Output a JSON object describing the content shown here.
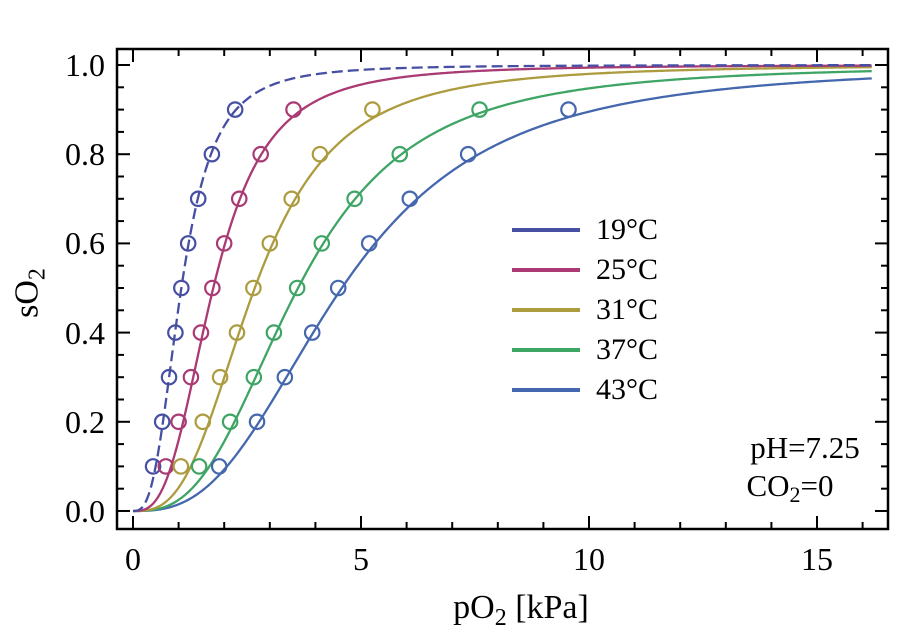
{
  "figure": {
    "background": "#ffffff",
    "frame_color": "#000000",
    "text_color": "#000000"
  },
  "chart_data": {
    "type": "line",
    "title": "",
    "xlabel": {
      "pre": "pO",
      "sub": "2",
      "post": " [kPa]"
    },
    "ylabel": {
      "pre": "sO",
      "sub": "2",
      "post": ""
    },
    "xlim": [
      -0.351,
      16.557
    ],
    "ylim": [
      -0.0404,
      1.0359
    ],
    "grid": false,
    "legend_position": "center-right",
    "x_major_ticks": [
      0,
      5,
      10,
      15
    ],
    "x_tick_labels": [
      "0",
      "5",
      "10",
      "15"
    ],
    "x_minor_step": 1,
    "x_minor_max": 16,
    "y_major_ticks": [
      0,
      0.2,
      0.4,
      0.6,
      0.8,
      1.0
    ],
    "y_tick_labels": [
      "0.0",
      "0.2",
      "0.4",
      "0.6",
      "0.8",
      "1.0"
    ],
    "y_minor_step": 0.05,
    "saturation_levels": [
      0.1,
      0.2,
      0.3,
      0.4,
      0.5,
      0.6,
      0.7,
      0.8,
      0.9
    ],
    "series": [
      {
        "id": "19c",
        "name": "19°C",
        "color": "#474FA3",
        "dashed": true,
        "p50": 1.06,
        "hill_n": 2.9,
        "marker_x": [
          0.44,
          0.64,
          0.79,
          0.93,
          1.06,
          1.21,
          1.43,
          1.73,
          2.24
        ]
      },
      {
        "id": "25c",
        "name": "25°C",
        "color": "#AA3A73",
        "dashed": false,
        "p50": 1.76,
        "hill_n": 2.95,
        "marker_x": [
          0.72,
          1.0,
          1.27,
          1.49,
          1.74,
          2.0,
          2.33,
          2.8,
          3.52
        ]
      },
      {
        "id": "31c",
        "name": "31°C",
        "color": "#AC9C3F",
        "dashed": false,
        "p50": 2.67,
        "hill_n": 2.95,
        "marker_x": [
          1.05,
          1.53,
          1.91,
          2.28,
          2.64,
          3.0,
          3.48,
          4.1,
          5.25
        ]
      },
      {
        "id": "37c",
        "name": "37°C",
        "color": "#3EA565",
        "dashed": false,
        "p50": 3.62,
        "hill_n": 2.85,
        "marker_x": [
          1.45,
          2.13,
          2.65,
          3.09,
          3.6,
          4.14,
          4.86,
          5.85,
          7.6
        ]
      },
      {
        "id": "43c",
        "name": "43°C",
        "color": "#4467AD",
        "dashed": false,
        "p50": 4.58,
        "hill_n": 2.75,
        "marker_x": [
          1.89,
          2.72,
          3.33,
          3.93,
          4.5,
          5.18,
          6.07,
          7.35,
          9.55
        ]
      }
    ],
    "annotations": [
      {
        "pre": "pH=7.25",
        "sub": "",
        "post": ""
      },
      {
        "pre": "CO",
        "sub": "2",
        "post": "=0"
      }
    ]
  }
}
